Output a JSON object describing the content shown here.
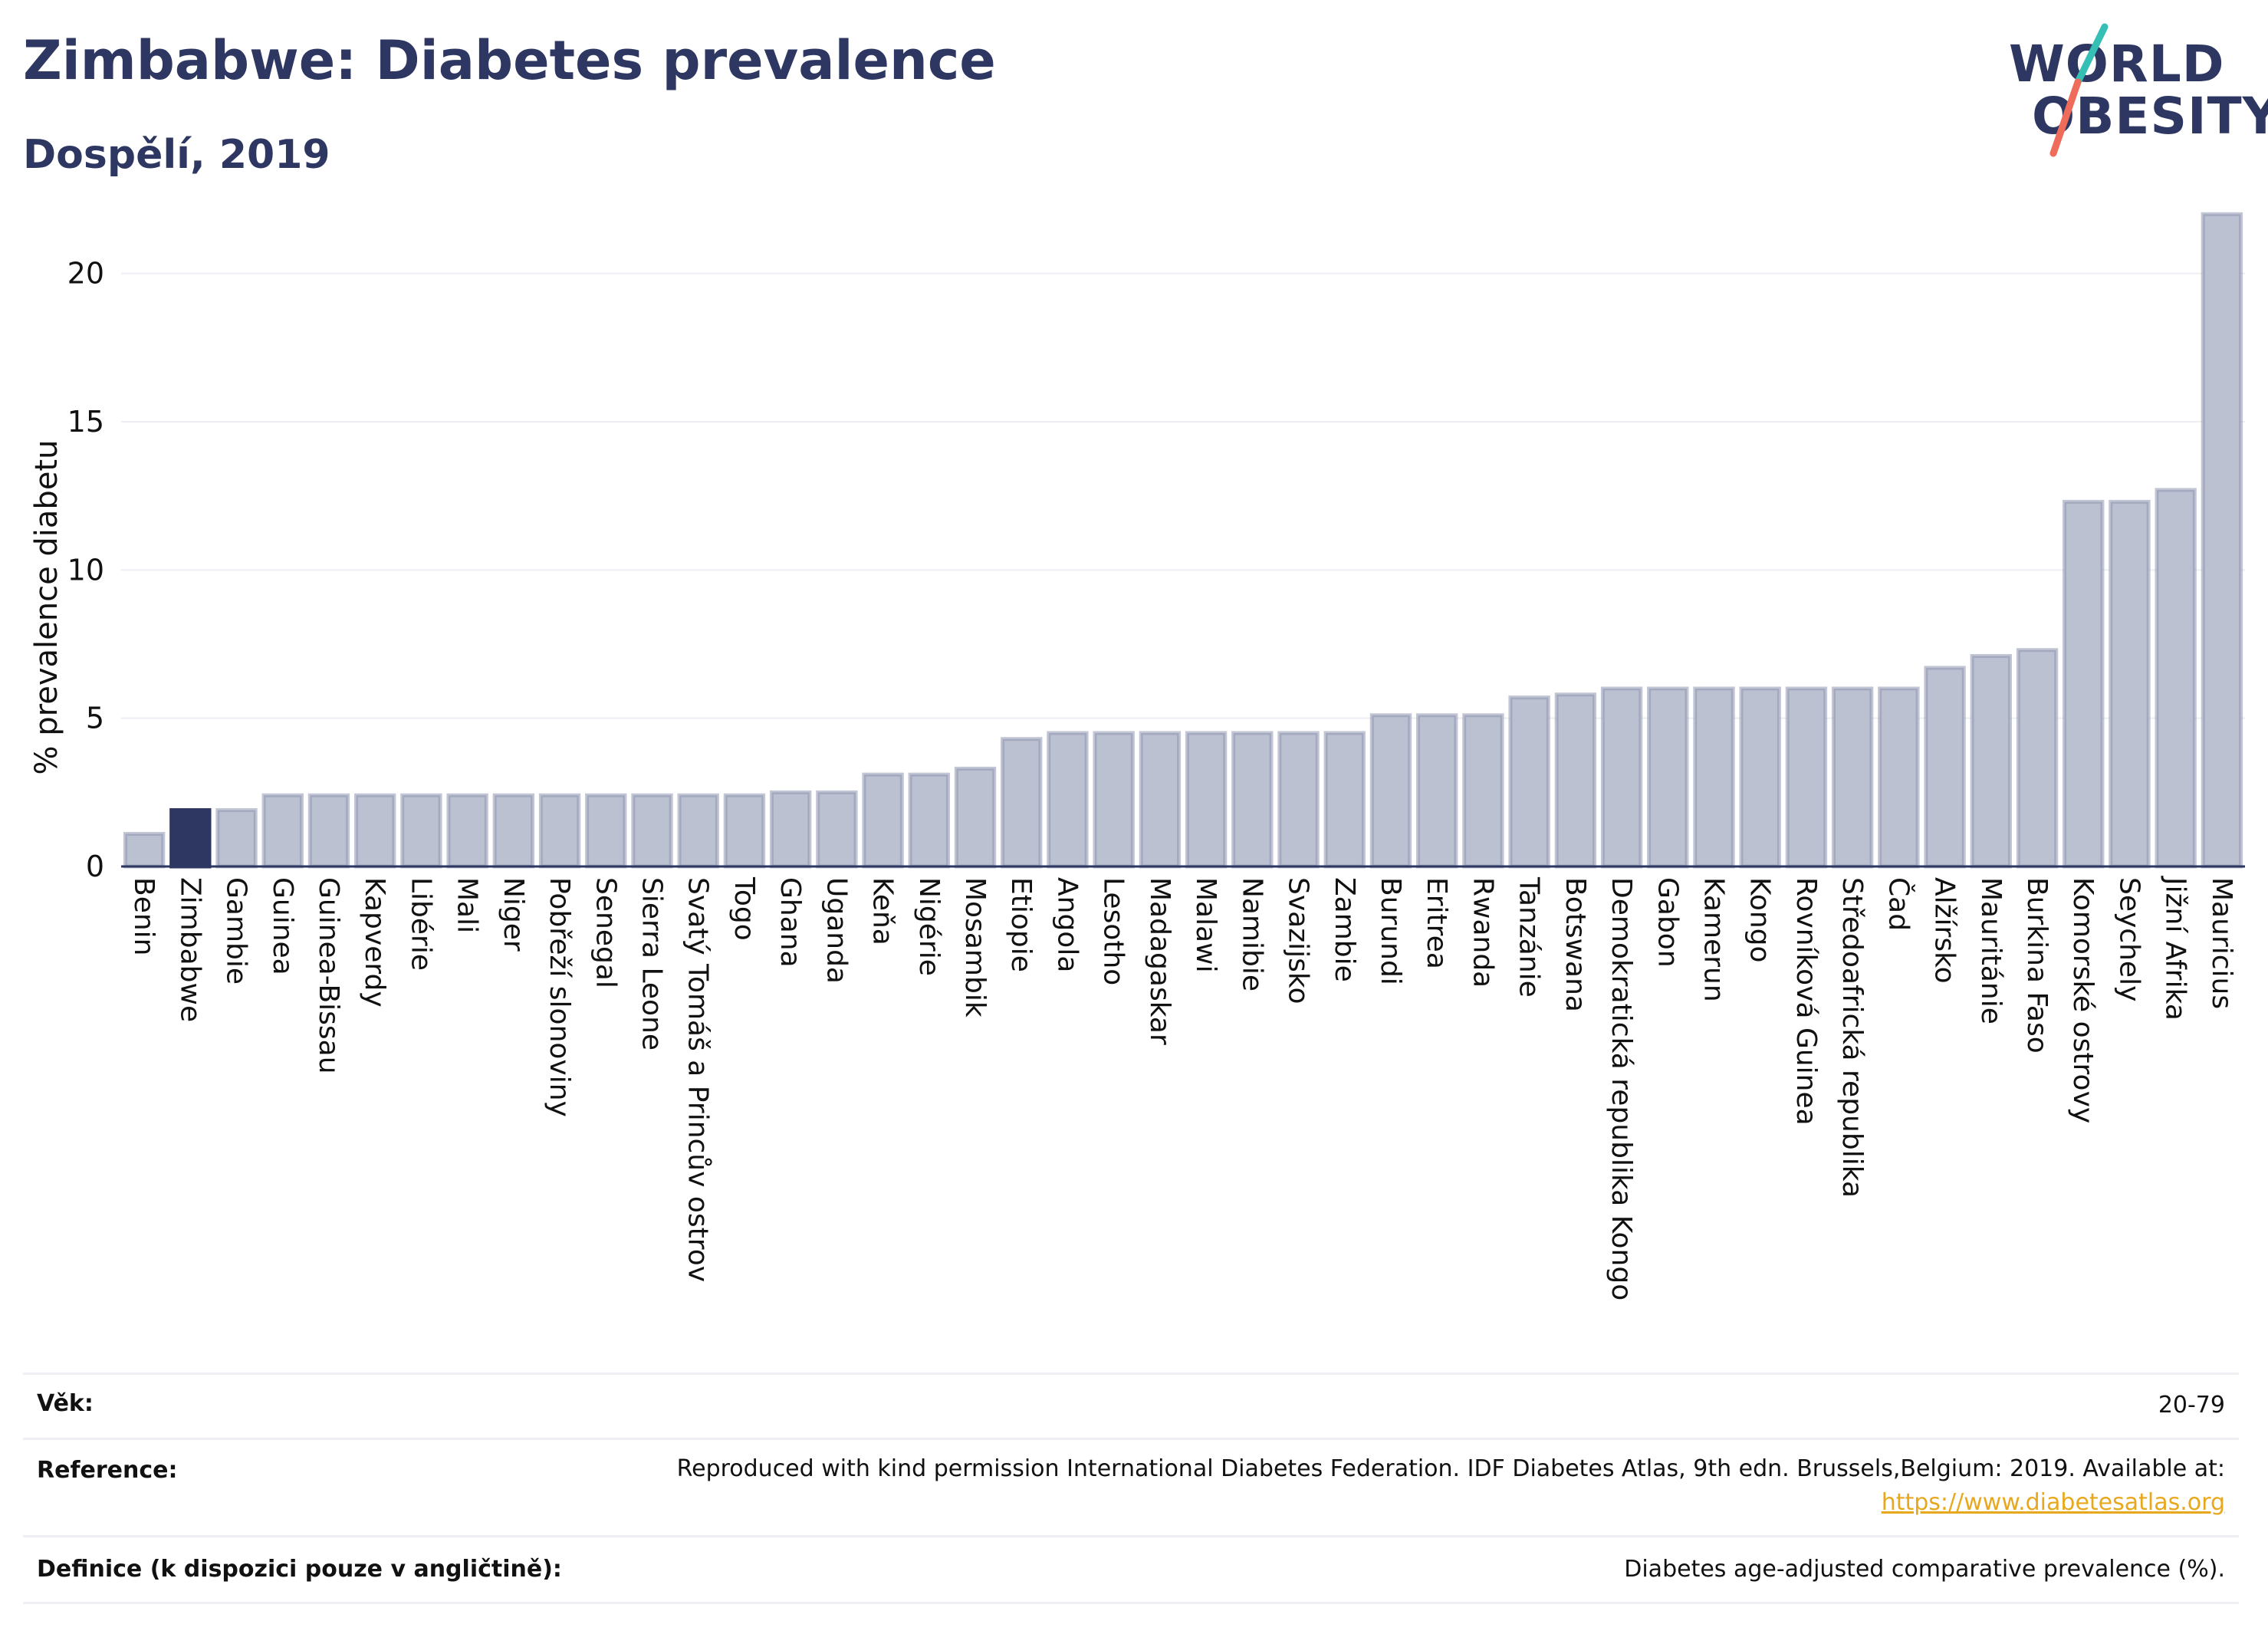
{
  "title": "Zimbabwe: Diabetes prevalence",
  "subtitle": "Dospělí, 2019",
  "logo": {
    "line1": "WORLD",
    "line2": "OBESITY",
    "colors": {
      "text": "#2d3762",
      "slash_top": "#35bfb5",
      "slash_bottom": "#ef6b5a"
    }
  },
  "colors": {
    "bar": "#bcc1d1",
    "bar_edge": "#8e95b0",
    "highlight": "#2d3762",
    "grid": "#eceef4",
    "axis": "#2d3762"
  },
  "chart_data": {
    "type": "bar",
    "ylabel": "% prevalence diabetu",
    "ylim": [
      0,
      22.5
    ],
    "yticks": [
      0,
      5,
      10,
      15,
      20
    ],
    "grid": true,
    "highlight": "Zimbabwe",
    "categories": [
      "Benin",
      "Zimbabwe",
      "Gambie",
      "Guinea",
      "Guinea-Bissau",
      "Kapverdy",
      "Libérie",
      "Mali",
      "Niger",
      "Pobřeží slonoviny",
      "Senegal",
      "Sierra Leone",
      "Svatý Tomáš a Princův ostrov",
      "Togo",
      "Ghana",
      "Uganda",
      "Keňa",
      "Nigérie",
      "Mosambik",
      "Etiopie",
      "Angola",
      "Lesotho",
      "Madagaskar",
      "Malawi",
      "Namibie",
      "Svazijsko",
      "Zambie",
      "Burundi",
      "Eritrea",
      "Rwanda",
      "Tanzánie",
      "Botswana",
      "Demokratická republika Kongo",
      "Gabon",
      "Kamerun",
      "Kongo",
      "Rovníková Guinea",
      "Středoafrická republika",
      "Čad",
      "Alžírsko",
      "Mauritánie",
      "Burkina Faso",
      "Komorské ostrovy",
      "Seychely",
      "Jižní Afrika",
      "Mauricius"
    ],
    "values": [
      1.1,
      1.9,
      1.9,
      2.4,
      2.4,
      2.4,
      2.4,
      2.4,
      2.4,
      2.4,
      2.4,
      2.4,
      2.4,
      2.4,
      2.5,
      2.5,
      3.1,
      3.1,
      3.3,
      4.3,
      4.5,
      4.5,
      4.5,
      4.5,
      4.5,
      4.5,
      4.5,
      5.1,
      5.1,
      5.1,
      5.7,
      5.8,
      6.0,
      6.0,
      6.0,
      6.0,
      6.0,
      6.0,
      6.0,
      6.7,
      7.1,
      7.3,
      12.3,
      12.3,
      12.7,
      22.0
    ]
  },
  "info": {
    "age_label": "Věk:",
    "age_value": "20-79",
    "reference_label": "Reference:",
    "reference_text": "Reproduced with kind permission International Diabetes Federation. IDF Diabetes Atlas, 9th edn. Brussels,Belgium: 2019. Available at:",
    "reference_link": "https://www.diabetesatlas.org",
    "definition_label": "Definice (k dispozici pouze v angličtině):",
    "definition_value": "Diabetes age-adjusted comparative prevalence (%)."
  }
}
